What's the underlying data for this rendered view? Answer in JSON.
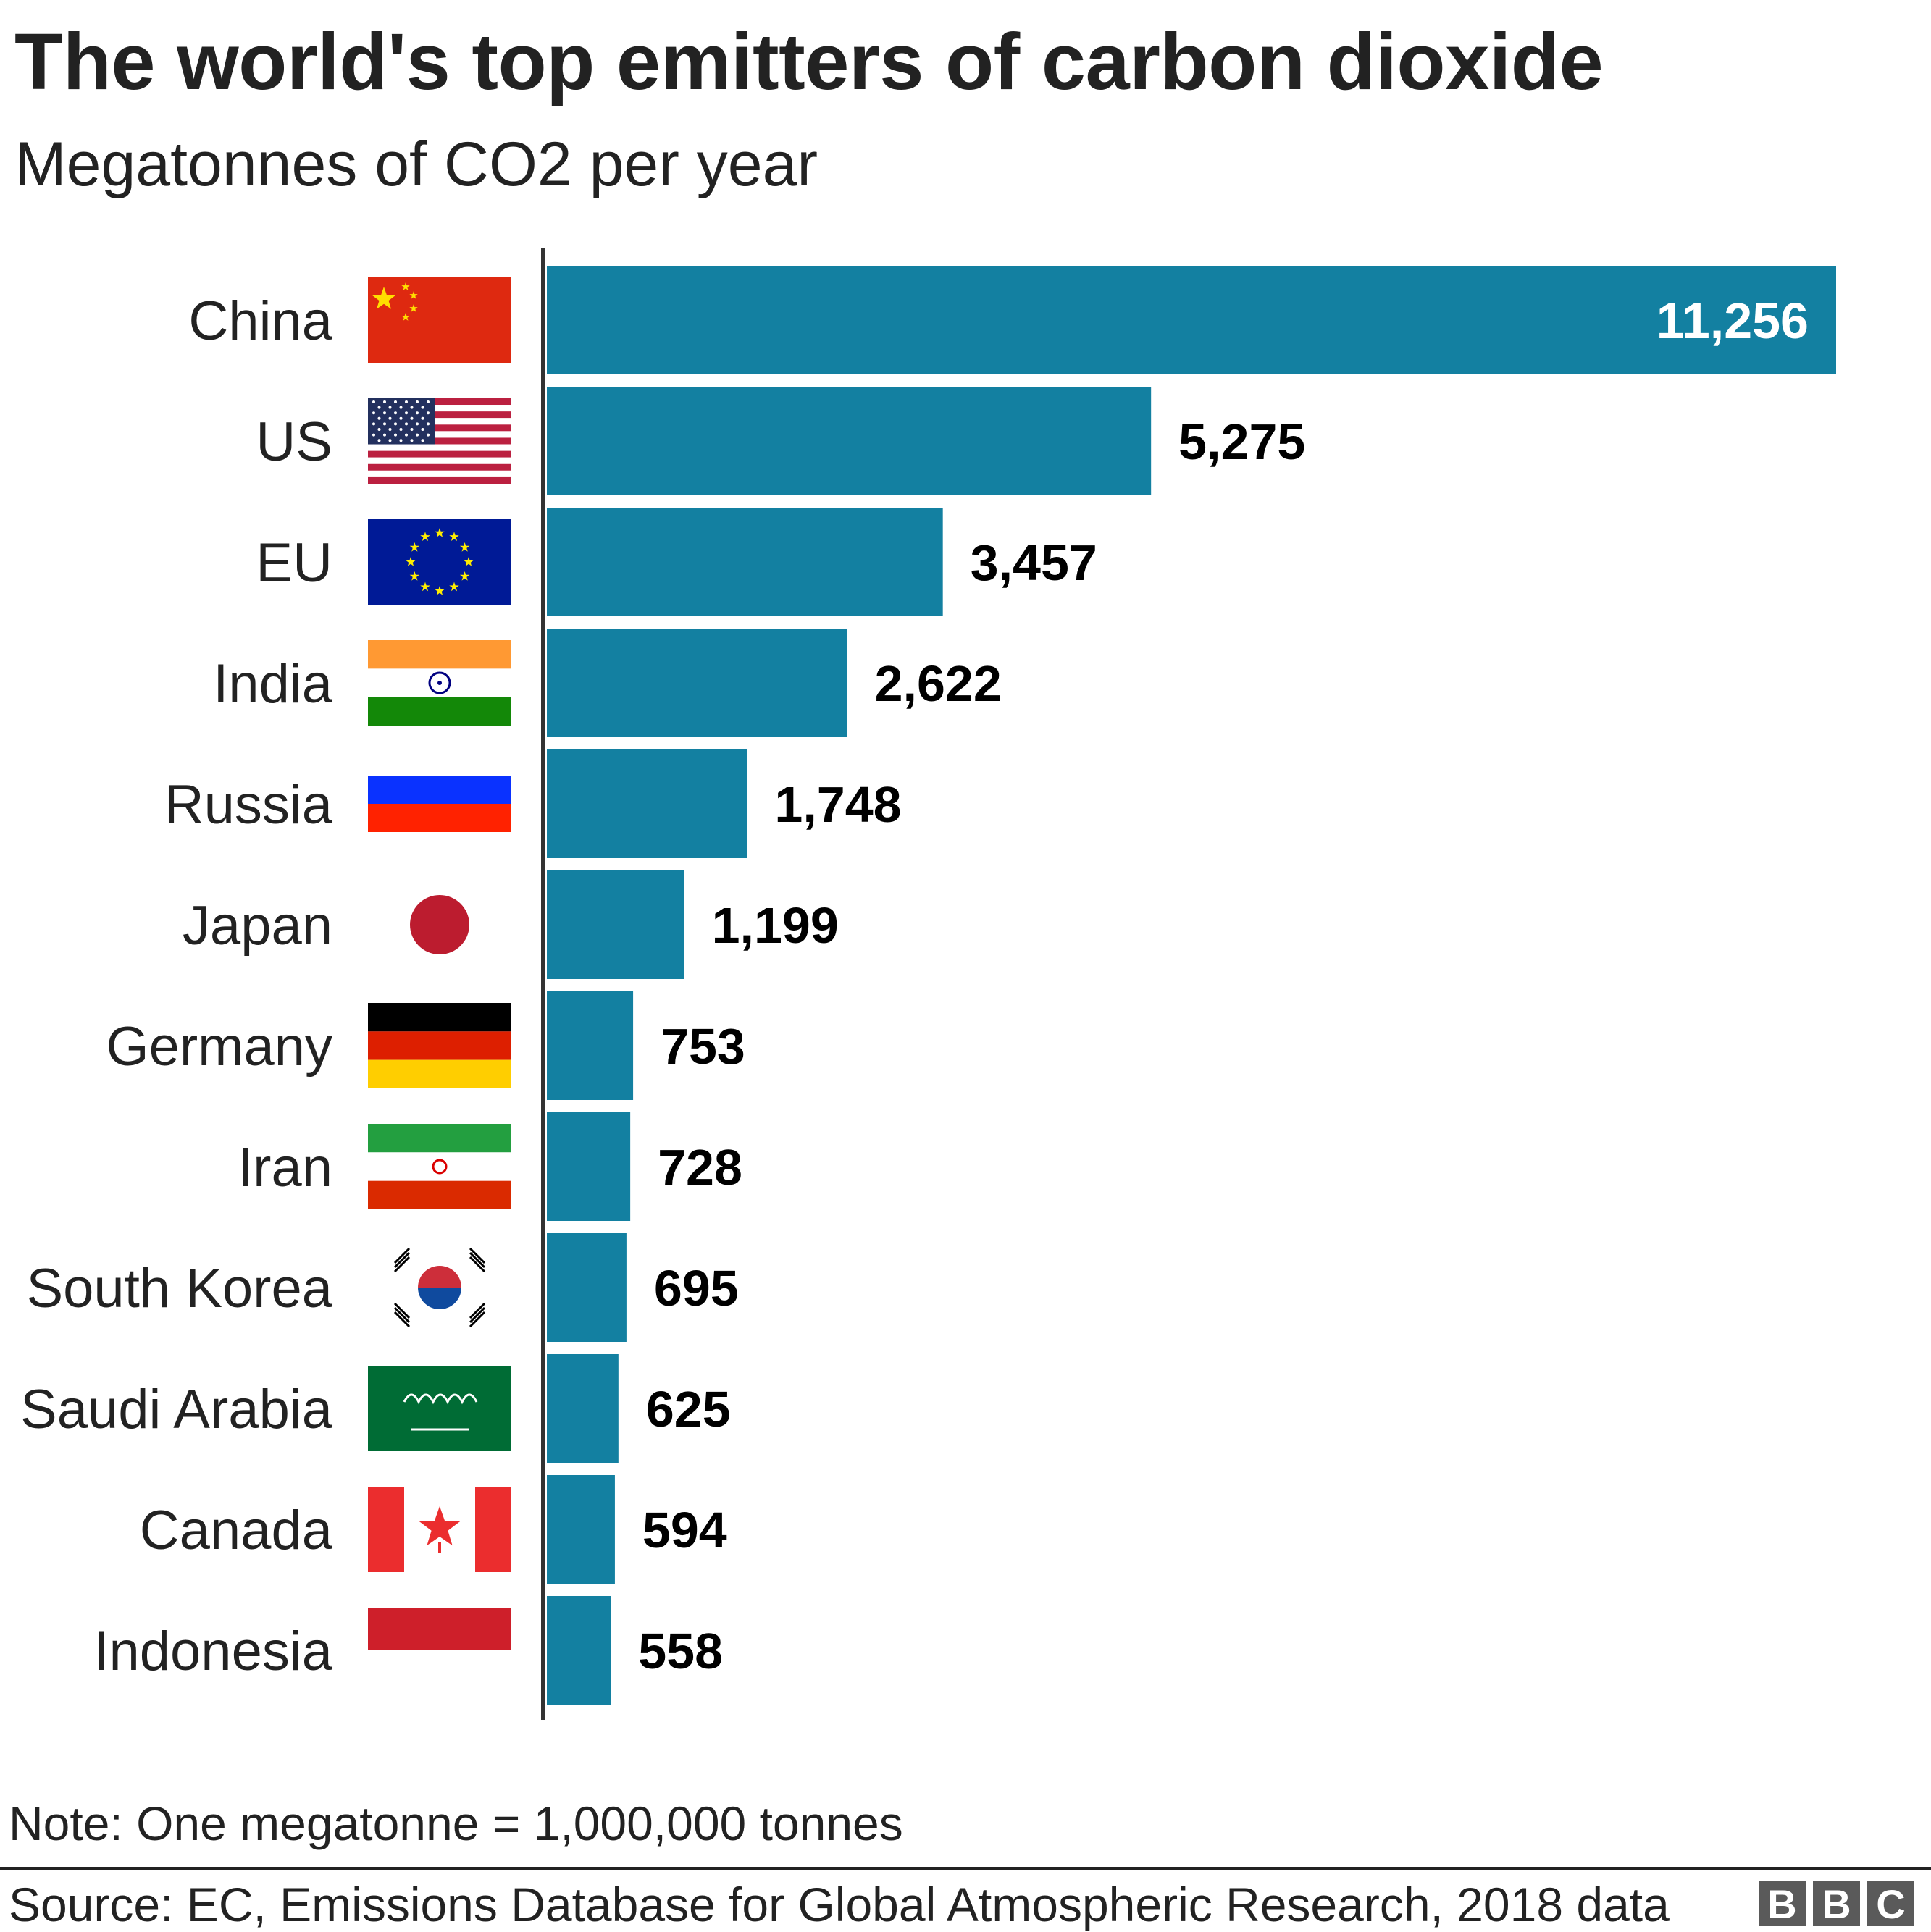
{
  "title": "The world's top emitters of carbon dioxide",
  "subtitle": "Megatonnes of CO2 per year",
  "note": "Note: One megatonne = 1,000,000 tonnes",
  "source": "Source: EC, Emissions Database for Global Atmospheric Research, 2018 data",
  "logo": [
    "B",
    "B",
    "C"
  ],
  "colors": {
    "bar": "#1380a1",
    "axis": "#333333",
    "inside_label": "#ffffff",
    "outside_label": "#000000"
  },
  "chart_data": {
    "type": "bar",
    "orientation": "horizontal",
    "title": "The world's top emitters of carbon dioxide",
    "subtitle": "Megatonnes of CO2 per year",
    "categories": [
      "China",
      "US",
      "EU",
      "India",
      "Russia",
      "Japan",
      "Germany",
      "Iran",
      "South Korea",
      "Saudi Arabia",
      "Canada",
      "Indonesia"
    ],
    "values": [
      11256,
      5275,
      3457,
      2622,
      1748,
      1199,
      753,
      728,
      695,
      625,
      594,
      558
    ],
    "value_labels": [
      "11,256",
      "5,275",
      "3,457",
      "2,622",
      "1,748",
      "1,199",
      "753",
      "728",
      "695",
      "625",
      "594",
      "558"
    ],
    "flags": [
      "china-flag",
      "us-flag",
      "eu-flag",
      "india-flag",
      "russia-flag",
      "japan-flag",
      "germany-flag",
      "iran-flag",
      "south-korea-flag",
      "saudi-arabia-flag",
      "canada-flag",
      "indonesia-flag"
    ],
    "xlim": [
      0,
      11256
    ],
    "grid": false,
    "legend": "none"
  }
}
